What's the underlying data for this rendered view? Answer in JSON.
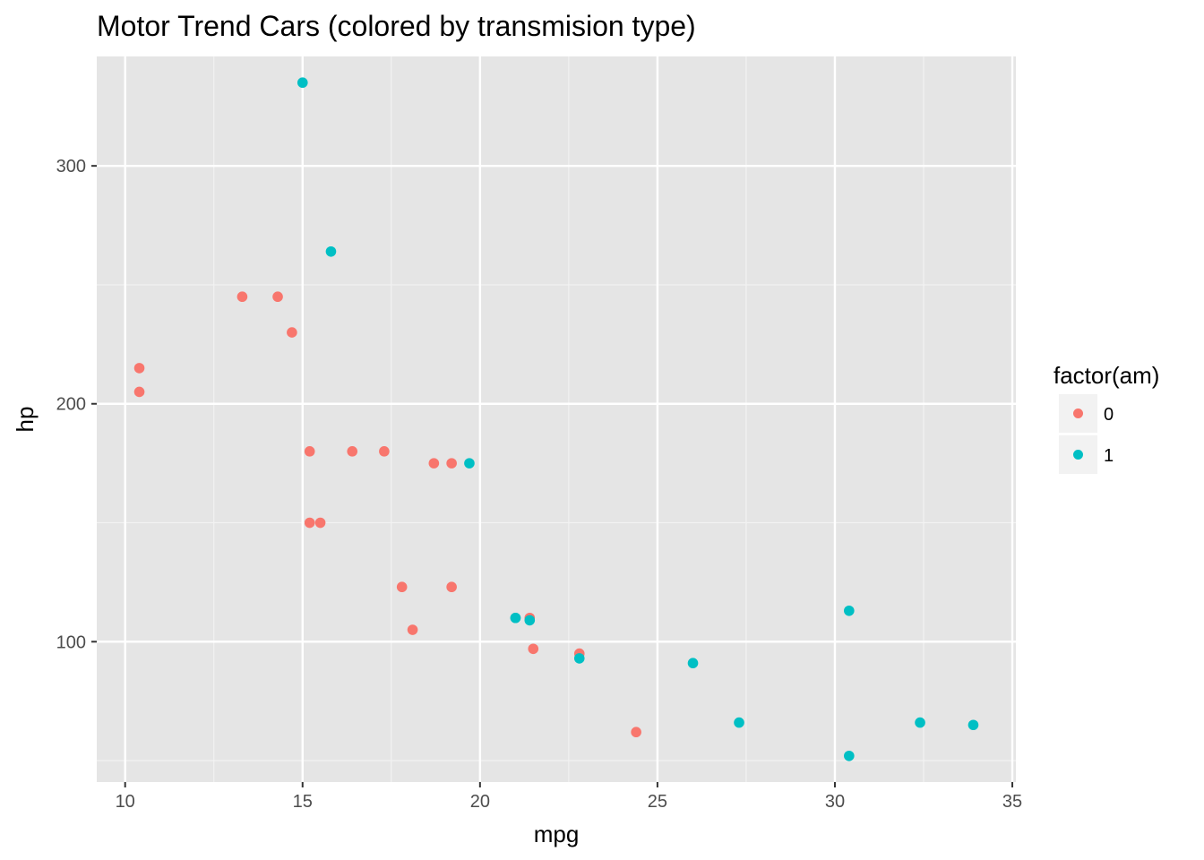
{
  "chart_data": {
    "type": "scatter",
    "title": "Motor Trend Cars (colored by transmision type)",
    "xlabel": "mpg",
    "ylabel": "hp",
    "xlim": [
      9.2,
      35.1
    ],
    "ylim": [
      41,
      346
    ],
    "x_ticks": [
      10,
      15,
      20,
      25,
      30,
      35
    ],
    "y_ticks": [
      100,
      200,
      300
    ],
    "x_tick_labels": [
      "10",
      "15",
      "20",
      "25",
      "30",
      "35"
    ],
    "y_tick_labels": [
      "100",
      "200",
      "300"
    ],
    "grid": true,
    "background": "#e5e5e5",
    "legend": {
      "title": "factor(am)",
      "placement": "right",
      "entries": [
        {
          "label": "0",
          "color": "#F8766D"
        },
        {
          "label": "1",
          "color": "#00BFC4"
        }
      ]
    },
    "series": [
      {
        "name": "0",
        "color": "#F8766D",
        "points": [
          {
            "x": 21.4,
            "y": 110
          },
          {
            "x": 18.7,
            "y": 175
          },
          {
            "x": 18.1,
            "y": 105
          },
          {
            "x": 14.3,
            "y": 245
          },
          {
            "x": 24.4,
            "y": 62
          },
          {
            "x": 22.8,
            "y": 95
          },
          {
            "x": 19.2,
            "y": 123
          },
          {
            "x": 17.8,
            "y": 123
          },
          {
            "x": 16.4,
            "y": 180
          },
          {
            "x": 17.3,
            "y": 180
          },
          {
            "x": 15.2,
            "y": 180
          },
          {
            "x": 10.4,
            "y": 205
          },
          {
            "x": 10.4,
            "y": 215
          },
          {
            "x": 14.7,
            "y": 230
          },
          {
            "x": 21.5,
            "y": 97
          },
          {
            "x": 15.5,
            "y": 150
          },
          {
            "x": 15.2,
            "y": 150
          },
          {
            "x": 13.3,
            "y": 245
          },
          {
            "x": 19.2,
            "y": 175
          }
        ]
      },
      {
        "name": "1",
        "color": "#00BFC4",
        "points": [
          {
            "x": 21.0,
            "y": 110
          },
          {
            "x": 21.0,
            "y": 110
          },
          {
            "x": 22.8,
            "y": 93
          },
          {
            "x": 32.4,
            "y": 66
          },
          {
            "x": 30.4,
            "y": 52
          },
          {
            "x": 33.9,
            "y": 65
          },
          {
            "x": 27.3,
            "y": 66
          },
          {
            "x": 26.0,
            "y": 91
          },
          {
            "x": 30.4,
            "y": 113
          },
          {
            "x": 15.8,
            "y": 264
          },
          {
            "x": 19.7,
            "y": 175
          },
          {
            "x": 15.0,
            "y": 335
          },
          {
            "x": 21.4,
            "y": 109
          }
        ]
      }
    ]
  }
}
